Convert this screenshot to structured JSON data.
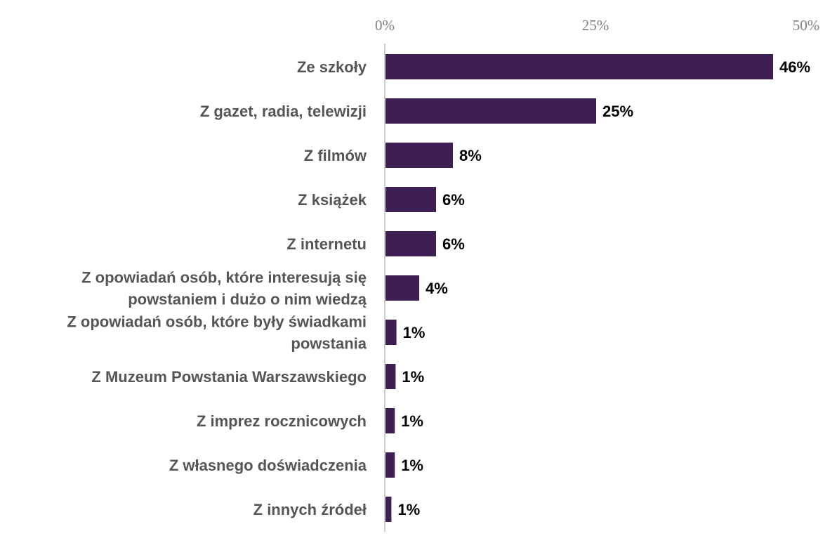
{
  "chart_data": {
    "type": "bar",
    "orientation": "horizontal",
    "categories": [
      [
        "Ze szkoły"
      ],
      [
        "Z gazet, radia, telewizji"
      ],
      [
        "Z filmów"
      ],
      [
        "Z książek"
      ],
      [
        "Z internetu"
      ],
      [
        "Z opowiadań osób, które interesują się",
        "powstaniem i dużo o nim wiedzą"
      ],
      [
        "Z opowiadań osób, które były świadkami",
        "powstania"
      ],
      [
        "Z Muzeum Powstania Warszawskiego"
      ],
      [
        "Z imprez rocznicowych"
      ],
      [
        "Z własnego doświadczenia"
      ],
      [
        "Z innych źródeł"
      ]
    ],
    "values": [
      46,
      25,
      8,
      6,
      6,
      4,
      1.3,
      1.2,
      1.1,
      1.1,
      0.7
    ],
    "value_labels": [
      "46%",
      "25%",
      "8%",
      "6%",
      "6%",
      "4%",
      "1%",
      "1%",
      "1%",
      "1%",
      "1%"
    ],
    "ticks": [
      {
        "value": 0,
        "label": "0%"
      },
      {
        "value": 25,
        "label": "25%"
      },
      {
        "value": 50,
        "label": "50%"
      }
    ],
    "xlim": [
      0,
      50
    ],
    "axis_position": "top",
    "grid": false,
    "legend": "none",
    "bar_color": "#3d1f54",
    "axis_color": "#bfbfbf"
  }
}
